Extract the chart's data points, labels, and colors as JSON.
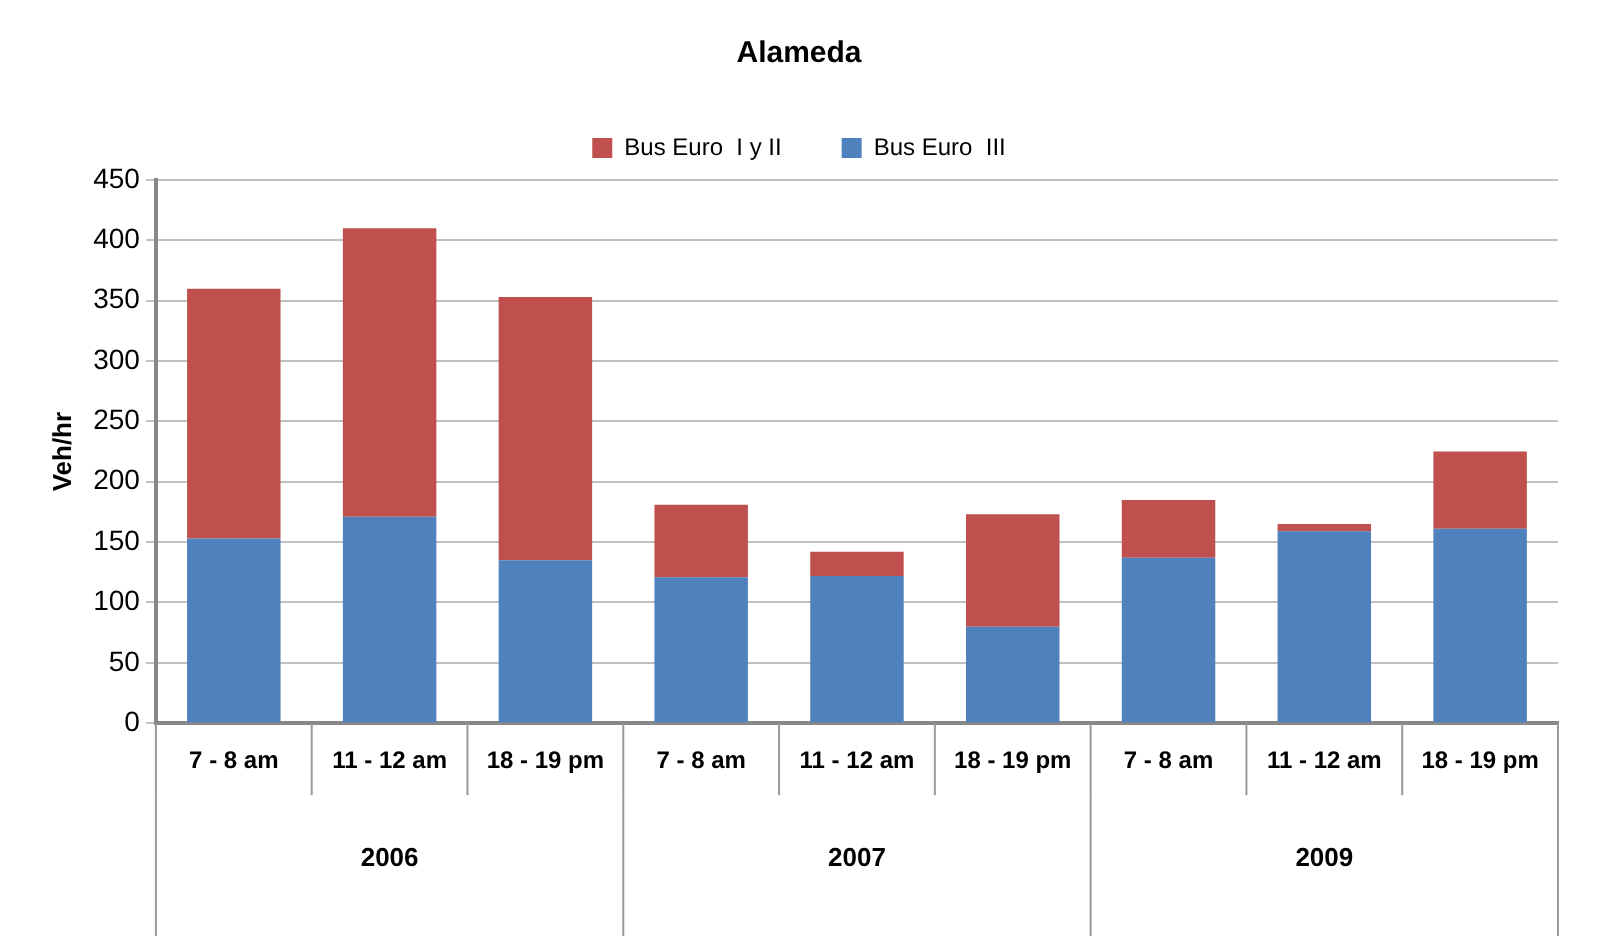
{
  "chart_data": {
    "type": "bar",
    "title": "Alameda",
    "ylabel": "Veh/hr",
    "stacked": true,
    "categories": [
      "7 - 8 am",
      "11 - 12 am",
      "18 - 19 pm",
      "7 - 8 am",
      "11 - 12 am",
      "18 - 19 pm",
      "7 - 8 am",
      "11 - 12 am",
      "18 - 19 pm"
    ],
    "series": [
      {
        "name": "Bus Euro  III",
        "color": "#4f81bd",
        "values": [
          153,
          171,
          135,
          121,
          122,
          80,
          137,
          159,
          161
        ]
      },
      {
        "name": "Bus Euro  I y II",
        "color": "#c0504d",
        "values": [
          207,
          239,
          218,
          60,
          20,
          93,
          48,
          6,
          64
        ]
      }
    ],
    "annotations": [
      "2006",
      "2007",
      "2009"
    ],
    "ylim": [
      0,
      450
    ],
    "yticks": [
      0,
      50,
      100,
      150,
      200,
      250,
      300,
      350,
      400,
      450
    ],
    "grid": "y",
    "legend": "top"
  }
}
